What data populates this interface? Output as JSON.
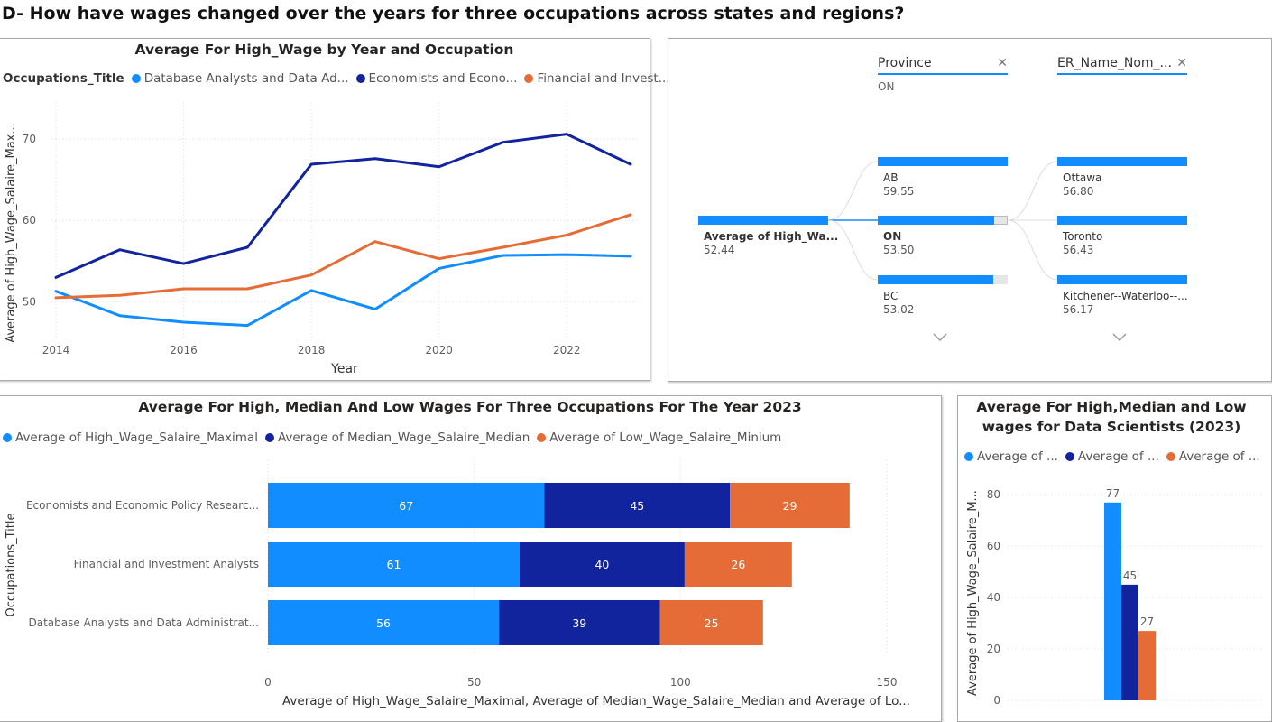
{
  "page": {
    "title": "D-   How have wages changed over the years for three occupations across states and regions?"
  },
  "colors": {
    "light_blue": "#118dff",
    "dark_blue": "#12239e",
    "orange": "#e66c37",
    "grid": "#d9d9d9",
    "axis_text": "#605e5c"
  },
  "line_visual": {
    "title": "Average For High_Wage by Year and Occupation",
    "legend_title": "Occupations_Title",
    "legend_items": [
      "Database Analysts and Data Ad...",
      "Economists and Econo...",
      "Financial and Invest..."
    ],
    "xlabel": "Year",
    "ylabel": "Average of High_Wage_Salaire_Max..."
  },
  "decomp_tree": {
    "root": {
      "label": "Average of High_Wa...",
      "value": "52.44"
    },
    "level1": {
      "header": "Province",
      "selected_value": "ON",
      "nodes": [
        {
          "label": "AB",
          "value": "59.55"
        },
        {
          "label": "ON",
          "value": "53.50"
        },
        {
          "label": "BC",
          "value": "53.02"
        }
      ]
    },
    "level2": {
      "header": "ER_Name_Nom_...",
      "nodes": [
        {
          "label": "Ottawa",
          "value": "56.80"
        },
        {
          "label": "Toronto",
          "value": "56.43"
        },
        {
          "label": "Kitchener--Waterloo--...",
          "value": "56.17"
        }
      ]
    }
  },
  "bar_visual": {
    "title": "Average For High, Median And Low Wages For Three Occupations For The Year 2023",
    "legend_items": [
      "Average of High_Wage_Salaire_Maximal",
      "Average of Median_Wage_Salaire_Median",
      "Average of Low_Wage_Salaire_Minium"
    ],
    "ylabel": "Occupations_Title",
    "xlabel": "Average of High_Wage_Salaire_Maximal, Average of Median_Wage_Salaire_Median and Average of Lo..."
  },
  "col_visual": {
    "title_line1": "Average For High,Median and Low",
    "title_line2": "wages for Data Scientists (2023)",
    "legend_items": [
      "Average of ...",
      "Average of ...",
      "Average of ..."
    ],
    "ylabel": "Average of High_Wage_Salaire_M..."
  },
  "chart_data": [
    {
      "type": "line",
      "title": "Average For High_Wage by Year and Occupation",
      "xlabel": "Year",
      "ylabel": "Average of High_Wage_Salaire_Max...",
      "x": [
        2014,
        2015,
        2016,
        2017,
        2018,
        2019,
        2020,
        2021,
        2022,
        2023
      ],
      "x_ticks": [
        2014,
        2016,
        2018,
        2020,
        2022
      ],
      "y_ticks": [
        50,
        60,
        70
      ],
      "ylim": [
        45.5,
        74
      ],
      "grid": true,
      "legend_position": "top",
      "series": [
        {
          "name": "Database Analysts and Data Ad...",
          "color": "#118dff",
          "values": [
            51.3,
            48.3,
            47.5,
            47.1,
            51.4,
            49.1,
            54.1,
            55.7,
            55.8,
            55.6
          ]
        },
        {
          "name": "Economists and Econo...",
          "color": "#12239e",
          "values": [
            53.0,
            56.4,
            54.7,
            56.7,
            66.9,
            67.6,
            66.6,
            69.6,
            70.6,
            66.9
          ]
        },
        {
          "name": "Financial and Invest...",
          "color": "#e66c37",
          "values": [
            50.5,
            50.8,
            51.6,
            51.6,
            53.3,
            57.4,
            55.3,
            56.7,
            58.2,
            60.7
          ]
        }
      ]
    },
    {
      "type": "bar",
      "orientation": "horizontal",
      "stacked": true,
      "title": "Average For High, Median And Low Wages For Three Occupations For The Year 2023",
      "ylabel": "Occupations_Title",
      "xlabel": "Average of High_Wage_Salaire_Maximal, Average of Median_Wage_Salaire_Median and Average of Lo...",
      "categories": [
        "Economists and Economic Policy Researc...",
        "Financial and Investment Analysts",
        "Database Analysts and Data Administrat..."
      ],
      "x_ticks": [
        0,
        50,
        100,
        150
      ],
      "xlim": [
        0,
        150
      ],
      "legend_position": "top",
      "series": [
        {
          "name": "Average of High_Wage_Salaire_Maximal",
          "color": "#118dff",
          "values": [
            67,
            61,
            56
          ]
        },
        {
          "name": "Average of Median_Wage_Salaire_Median",
          "color": "#12239e",
          "values": [
            45,
            40,
            39
          ]
        },
        {
          "name": "Average of Low_Wage_Salaire_Minium",
          "color": "#e66c37",
          "values": [
            29,
            26,
            25
          ]
        }
      ]
    },
    {
      "type": "bar",
      "orientation": "vertical",
      "title": "Average For High,Median and Low wages for Data Scientists (2023)",
      "ylabel": "Average of High_Wage_Salaire_M...",
      "y_ticks": [
        0,
        20,
        40,
        60,
        80
      ],
      "ylim": [
        0,
        85
      ],
      "legend_position": "top",
      "series": [
        {
          "name": "Average of ...",
          "color": "#118dff",
          "values": [
            77
          ]
        },
        {
          "name": "Average of ...",
          "color": "#12239e",
          "values": [
            45
          ]
        },
        {
          "name": "Average of ...",
          "color": "#e66c37",
          "values": [
            27
          ]
        }
      ]
    }
  ]
}
